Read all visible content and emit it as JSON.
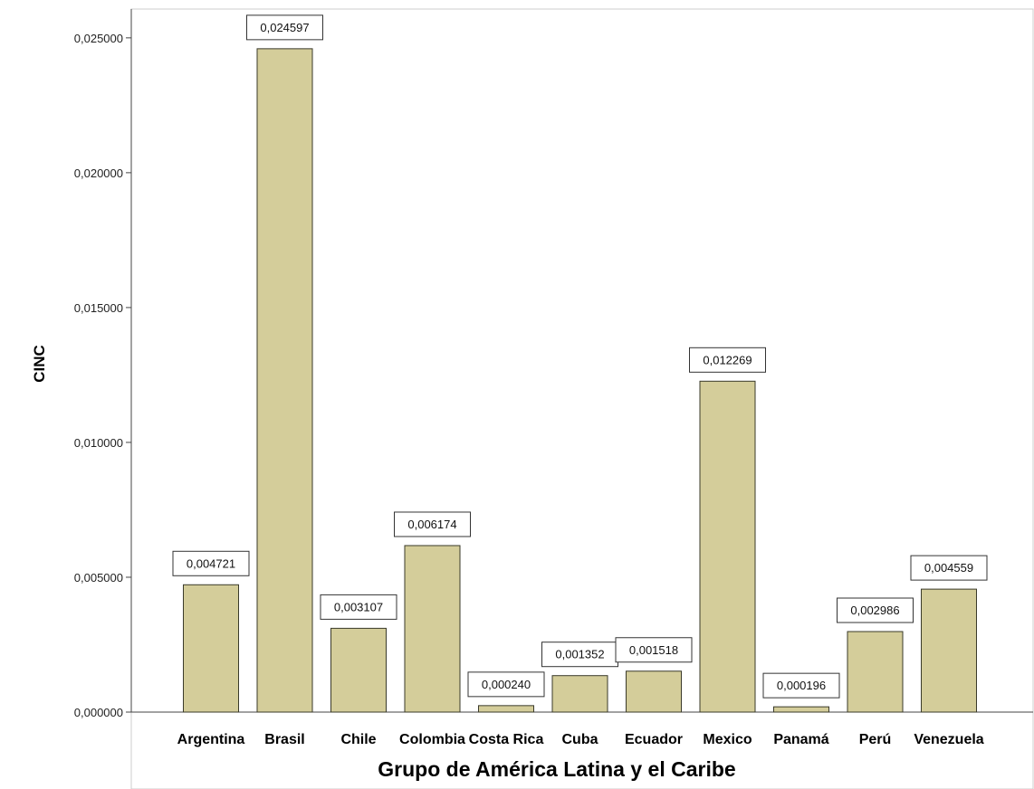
{
  "chart_data": {
    "type": "bar",
    "title": "",
    "xlabel": "Grupo de América Latina y el Caribe",
    "ylabel": "CINC",
    "categories": [
      "Argentina",
      "Brasil",
      "Chile",
      "Colombia",
      "Costa Rica",
      "Cuba",
      "Ecuador",
      "Mexico",
      "Panamá",
      "Perú",
      "Venezuela"
    ],
    "values": [
      0.004721,
      0.024597,
      0.003107,
      0.006174,
      0.00024,
      0.001352,
      0.001518,
      0.012269,
      0.000196,
      0.002986,
      0.004559
    ],
    "data_labels": [
      "0,004721",
      "0,024597",
      "0,003107",
      "0,006174",
      "0,000240",
      "0,001352",
      "0,001518",
      "0,012269",
      "0,000196",
      "0,002986",
      "0,004559"
    ],
    "yticks": [
      0,
      0.005,
      0.01,
      0.015,
      0.02,
      0.025
    ],
    "ytick_labels": [
      "0,000000",
      "0,005000",
      "0,010000",
      "0,015000",
      "0,020000",
      "0,025000"
    ],
    "ylim": [
      0,
      0.0258
    ],
    "grid": false,
    "legend": "none",
    "colors": {
      "bar_fill": "#d4cd9a",
      "bar_stroke": "#3a3a2a",
      "axis": "#444444",
      "frame": "#cccccc"
    }
  }
}
